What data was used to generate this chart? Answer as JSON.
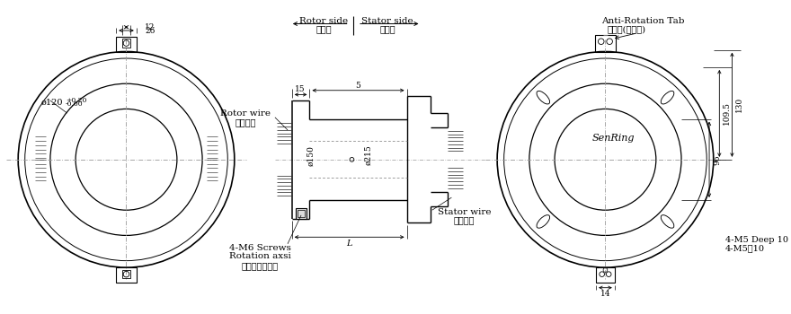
{
  "bg_color": "#ffffff",
  "line_color": "#000000",
  "text_color": "#000000",
  "figsize": [
    8.8,
    3.5
  ],
  "dpi": 100,
  "labels": {
    "rotor_side": "Rotor side",
    "rotor_side_cn": "转子边",
    "stator_side": "Stator side",
    "stator_side_cn": "定子边",
    "anti_rotation": "Anti-Rotation Tab",
    "anti_rotation_cn": "止转片(可调节)",
    "rotor_wire": "Rotor wire",
    "rotor_wire_cn": "转子出线",
    "stator_wire": "Stator wire",
    "stator_wire_cn": "定子出线",
    "m6_screws": "4-M6 Screws",
    "rotation_axsi": "Rotation axsi",
    "rotation_axsi_cn": "转子螺钉固定孔",
    "m5_deep": "4-M5 Deep 10",
    "m5_deep_cn": "4-M5深10",
    "senring": "SenRing"
  }
}
